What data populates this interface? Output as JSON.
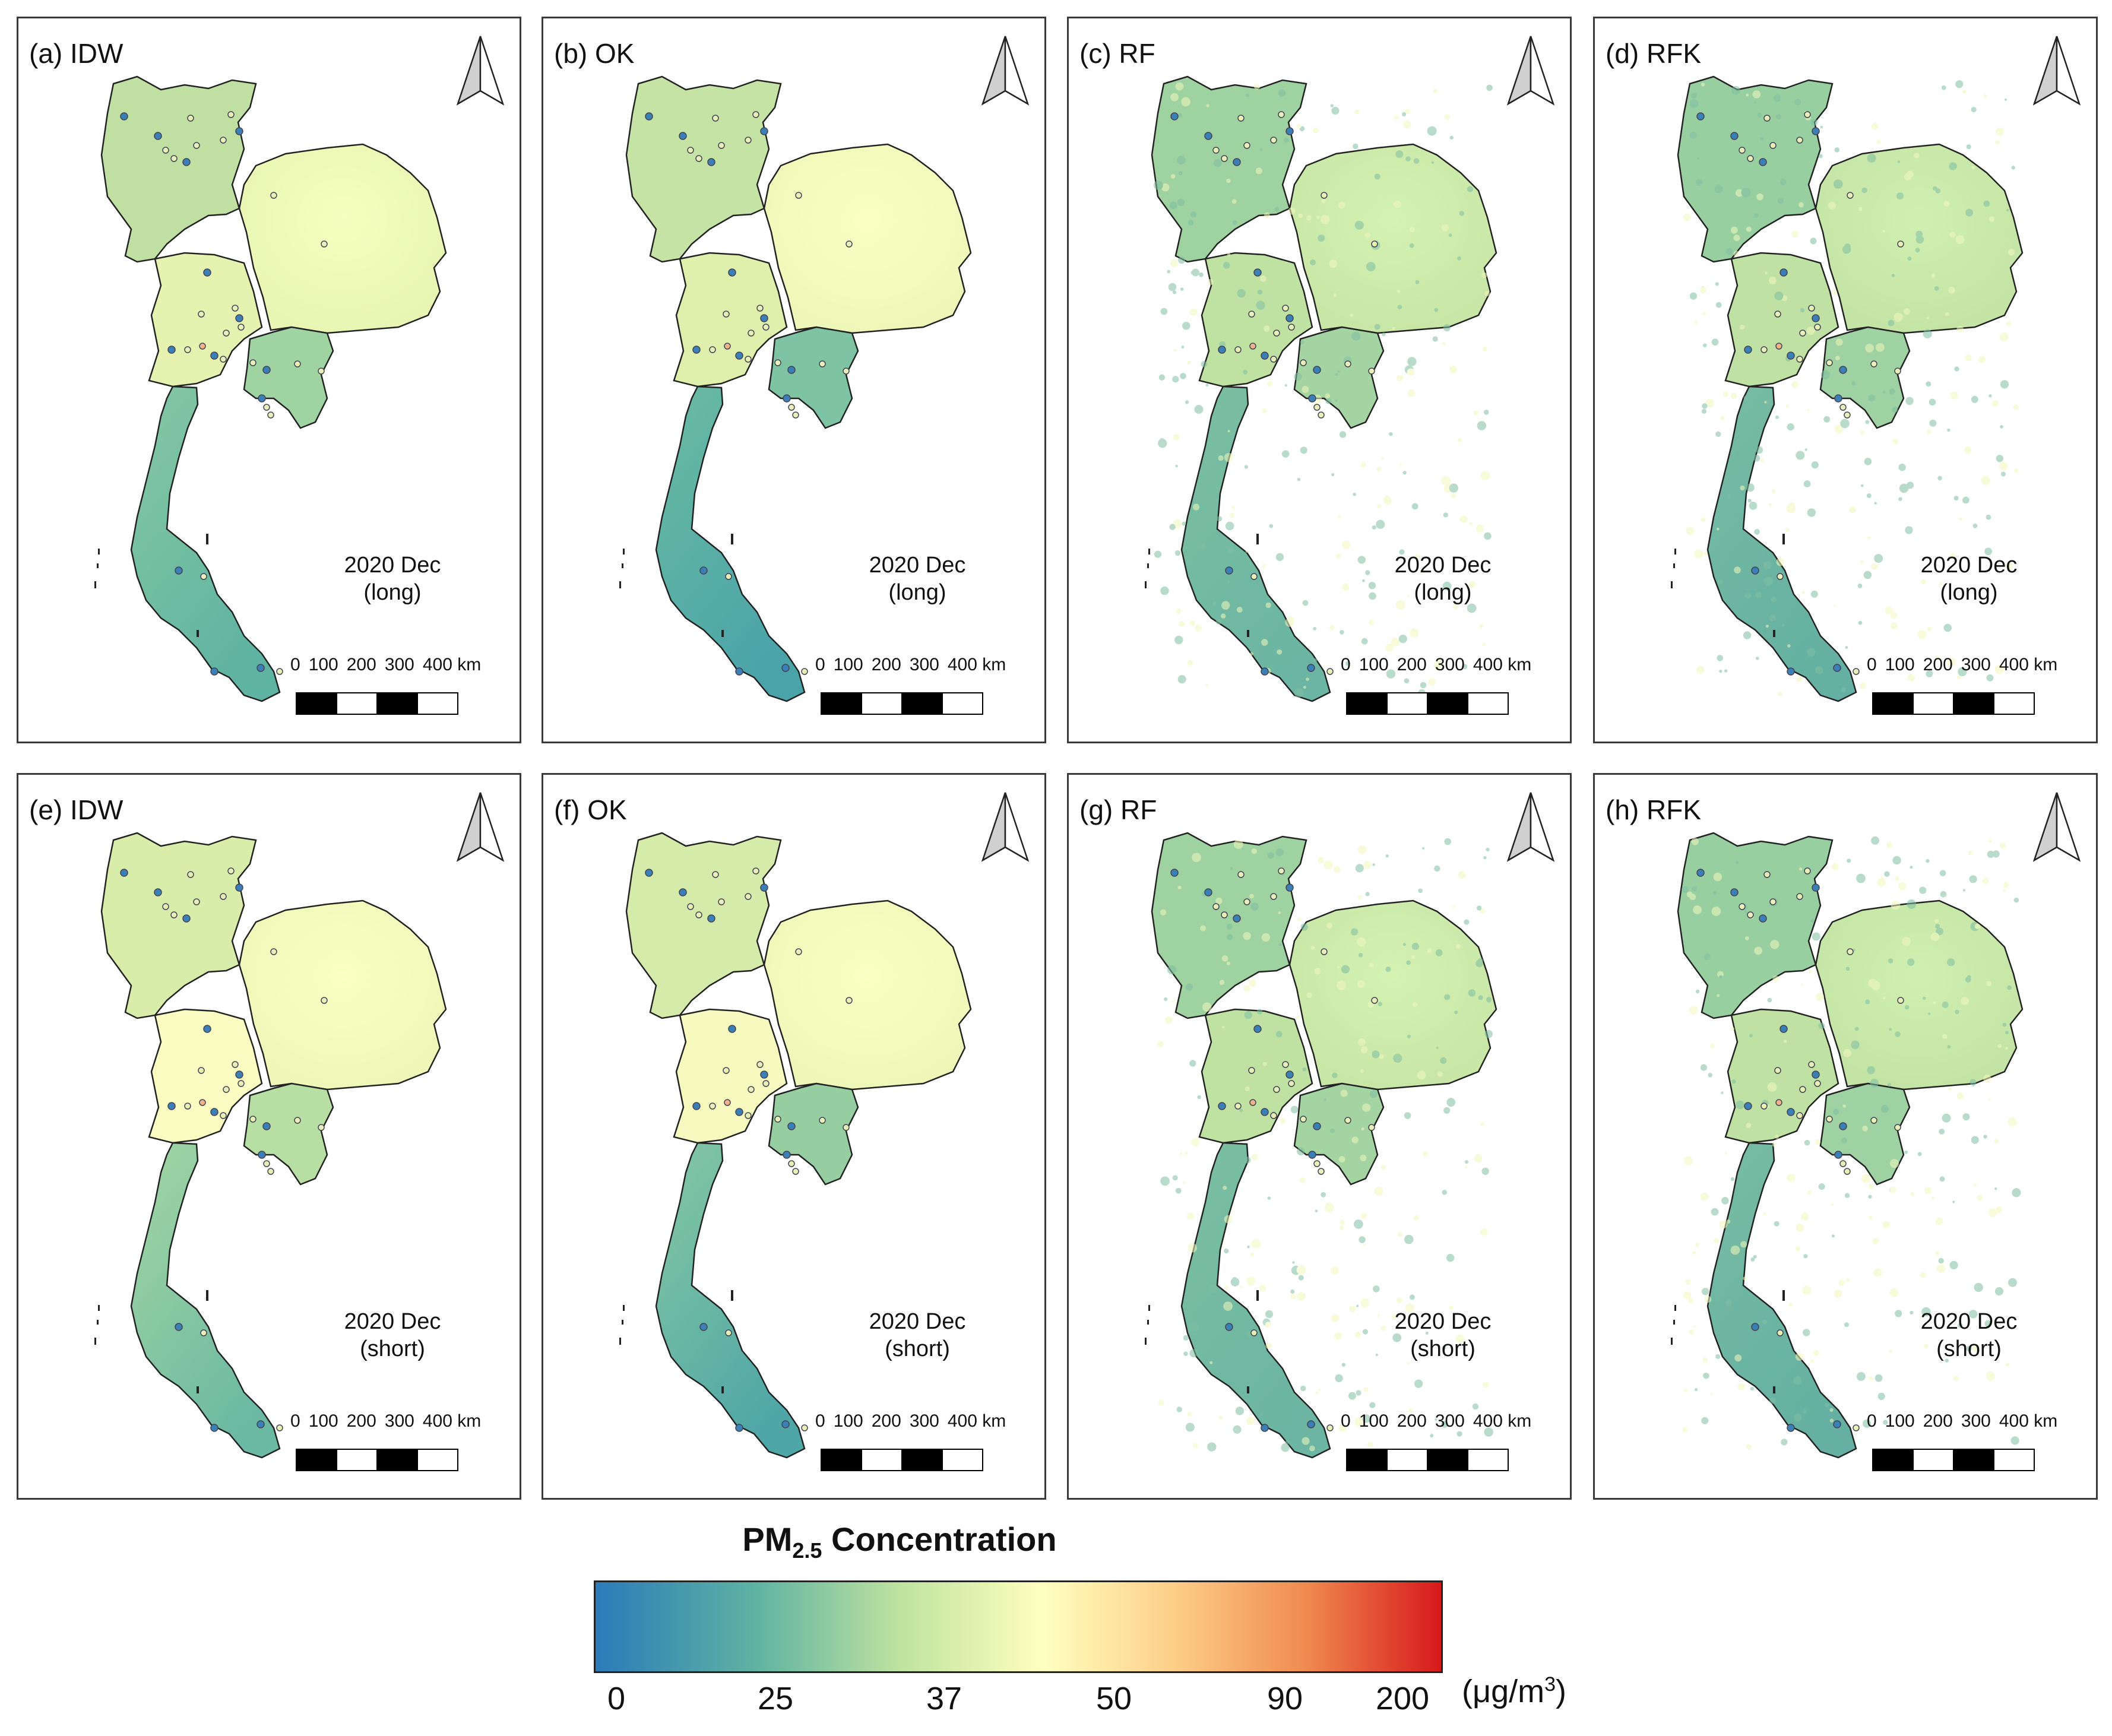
{
  "panels": [
    {
      "label": "(a) IDW",
      "date": "2020 Dec",
      "period": "(long)",
      "style": "idw"
    },
    {
      "label": "(b) OK",
      "date": "2020 Dec",
      "period": "(long)",
      "style": "ok"
    },
    {
      "label": "(c) RF",
      "date": "2020 Dec",
      "period": "(long)",
      "style": "rf"
    },
    {
      "label": "(d) RFK",
      "date": "2020 Dec",
      "period": "(long)",
      "style": "rfk"
    },
    {
      "label": "(e) IDW",
      "date": "2020 Dec",
      "period": "(short)",
      "style": "idw2"
    },
    {
      "label": "(f) OK",
      "date": "2020 Dec",
      "period": "(short)",
      "style": "ok2"
    },
    {
      "label": "(g) RF",
      "date": "2020 Dec",
      "period": "(short)",
      "style": "rf"
    },
    {
      "label": "(h) RFK",
      "date": "2020 Dec",
      "period": "(short)",
      "style": "rfk"
    }
  ],
  "scale_bar": {
    "ticks": [
      "0",
      "100",
      "200",
      "300",
      "400 km"
    ]
  },
  "legend": {
    "title_main": "PM",
    "title_sub": "2.5",
    "title_rest": " Concentration",
    "ticks": [
      "0",
      "25",
      "37",
      "50",
      "90",
      "200"
    ],
    "units_main": "(μg/m",
    "units_sup": "3",
    "units_close": ")"
  }
}
